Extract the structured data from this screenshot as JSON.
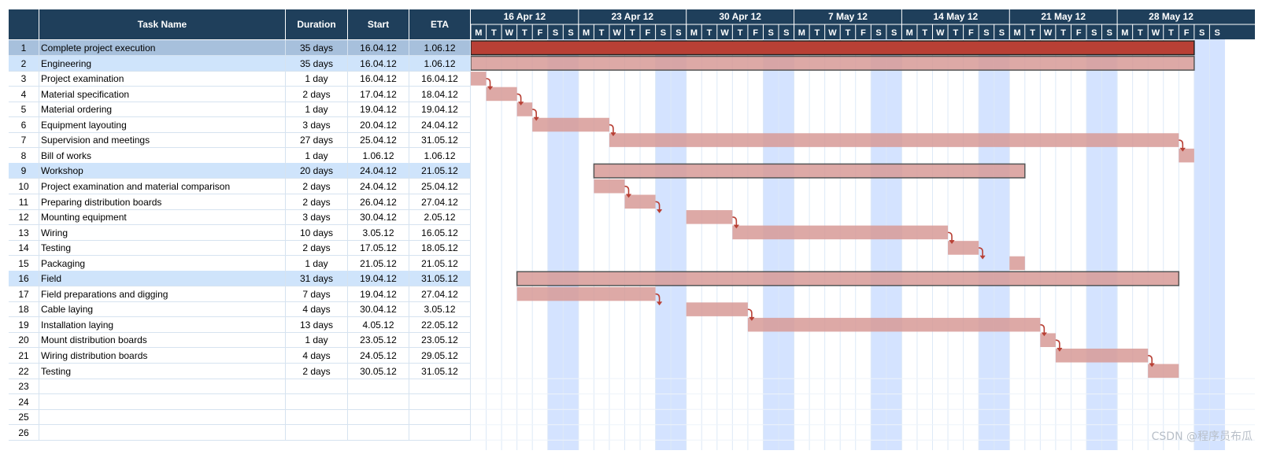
{
  "columns": {
    "num": "",
    "name": "Task Name",
    "duration": "Duration",
    "start": "Start",
    "eta": "ETA"
  },
  "timeline": {
    "weeks": [
      "16 Apr 12",
      "23 Apr 12",
      "30 Apr 12",
      "7 May 12",
      "14 May 12",
      "21 May 12",
      "28 May 12"
    ],
    "day_letters": [
      "M",
      "T",
      "W",
      "T",
      "F",
      "S",
      "S"
    ],
    "first_day": "16.04.12",
    "days_shown": 49,
    "weekend_highlight": "#d4e3ff",
    "bar_color": "#d79a96",
    "project_bar_color": "#b84035"
  },
  "tasks": [
    {
      "id": "1",
      "name": "Complete project execution",
      "duration": "35 days",
      "start": "16.04.12",
      "eta": "1.06.12",
      "level": "project"
    },
    {
      "id": "2",
      "name": "Engineering",
      "duration": "35 days",
      "start": "16.04.12",
      "eta": "1.06.12",
      "level": "summary"
    },
    {
      "id": "3",
      "name": "Project examination",
      "duration": "1 day",
      "start": "16.04.12",
      "eta": "16.04.12",
      "level": "task"
    },
    {
      "id": "4",
      "name": "Material specification",
      "duration": "2 days",
      "start": "17.04.12",
      "eta": "18.04.12",
      "level": "task"
    },
    {
      "id": "5",
      "name": "Material ordering",
      "duration": "1 day",
      "start": "19.04.12",
      "eta": "19.04.12",
      "level": "task"
    },
    {
      "id": "6",
      "name": "Equipment layouting",
      "duration": "3 days",
      "start": "20.04.12",
      "eta": "24.04.12",
      "level": "task"
    },
    {
      "id": "7",
      "name": "Supervision and meetings",
      "duration": "27 days",
      "start": "25.04.12",
      "eta": "31.05.12",
      "level": "task"
    },
    {
      "id": "8",
      "name": "Bill of works",
      "duration": "1 day",
      "start": "1.06.12",
      "eta": "1.06.12",
      "level": "task"
    },
    {
      "id": "9",
      "name": "Workshop",
      "duration": "20 days",
      "start": "24.04.12",
      "eta": "21.05.12",
      "level": "summary"
    },
    {
      "id": "10",
      "name": "Project examination and material comparison",
      "duration": "2 days",
      "start": "24.04.12",
      "eta": "25.04.12",
      "level": "task"
    },
    {
      "id": "11",
      "name": "Preparing distribution boards",
      "duration": "2 days",
      "start": "26.04.12",
      "eta": "27.04.12",
      "level": "task"
    },
    {
      "id": "12",
      "name": "Mounting equipment",
      "duration": "3 days",
      "start": "30.04.12",
      "eta": "2.05.12",
      "level": "task"
    },
    {
      "id": "13",
      "name": "Wiring",
      "duration": "10 days",
      "start": "3.05.12",
      "eta": "16.05.12",
      "level": "task"
    },
    {
      "id": "14",
      "name": "Testing",
      "duration": "2 days",
      "start": "17.05.12",
      "eta": "18.05.12",
      "level": "task"
    },
    {
      "id": "15",
      "name": "Packaging",
      "duration": "1 day",
      "start": "21.05.12",
      "eta": "21.05.12",
      "level": "task"
    },
    {
      "id": "16",
      "name": "Field",
      "duration": "31 days",
      "start": "19.04.12",
      "eta": "31.05.12",
      "level": "summary"
    },
    {
      "id": "17",
      "name": "Field preparations and digging",
      "duration": "7 days",
      "start": "19.04.12",
      "eta": "27.04.12",
      "level": "task"
    },
    {
      "id": "18",
      "name": "Cable laying",
      "duration": "4 days",
      "start": "30.04.12",
      "eta": "3.05.12",
      "level": "task"
    },
    {
      "id": "19",
      "name": "Installation laying",
      "duration": "13 days",
      "start": "4.05.12",
      "eta": "22.05.12",
      "level": "task"
    },
    {
      "id": "20",
      "name": "Mount distribution boards",
      "duration": "1 day",
      "start": "23.05.12",
      "eta": "23.05.12",
      "level": "task"
    },
    {
      "id": "21",
      "name": "Wiring distribution boards",
      "duration": "4 days",
      "start": "24.05.12",
      "eta": "29.05.12",
      "level": "task"
    },
    {
      "id": "22",
      "name": "Testing",
      "duration": "2 days",
      "start": "30.05.12",
      "eta": "31.05.12",
      "level": "task"
    },
    {
      "id": "23",
      "name": "",
      "duration": "",
      "start": "",
      "eta": "",
      "level": "empty"
    },
    {
      "id": "24",
      "name": "",
      "duration": "",
      "start": "",
      "eta": "",
      "level": "empty"
    },
    {
      "id": "25",
      "name": "",
      "duration": "",
      "start": "",
      "eta": "",
      "level": "empty"
    },
    {
      "id": "26",
      "name": "",
      "duration": "",
      "start": "",
      "eta": "",
      "level": "empty"
    }
  ],
  "dependencies": [
    [
      "3",
      "4"
    ],
    [
      "4",
      "5"
    ],
    [
      "5",
      "6"
    ],
    [
      "6",
      "7"
    ],
    [
      "7",
      "8"
    ],
    [
      "10",
      "11"
    ],
    [
      "11",
      "12"
    ],
    [
      "12",
      "13"
    ],
    [
      "13",
      "14"
    ],
    [
      "14",
      "15"
    ],
    [
      "17",
      "18"
    ],
    [
      "18",
      "19"
    ],
    [
      "19",
      "20"
    ],
    [
      "20",
      "21"
    ],
    [
      "21",
      "22"
    ]
  ],
  "watermark": "CSDN @程序员布瓜"
}
